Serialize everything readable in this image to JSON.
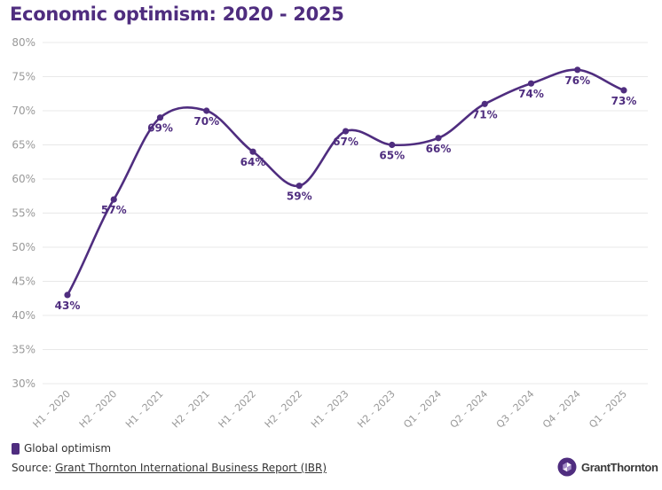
{
  "title": "Economic optimism: 2020 - 2025",
  "legend": {
    "label": "Global optimism"
  },
  "source": {
    "prefix": "Source: ",
    "link_text": "Grant Thornton International Business Report (IBR)"
  },
  "logo": {
    "text": "GrantThornton"
  },
  "colors": {
    "series": "#4f2d7f",
    "grid": "#e8e8e8",
    "tick": "#999999"
  },
  "chart_data": {
    "type": "line",
    "title": "Economic optimism: 2020 - 2025",
    "categories": [
      "H1 - 2020",
      "H2 - 2020",
      "H1 - 2021",
      "H2 - 2021",
      "H1 - 2022",
      "H2 - 2022",
      "H1 - 2023",
      "H2 - 2023",
      "Q1 - 2024",
      "Q2 - 2024",
      "Q3 - 2024",
      "Q4 - 2024",
      "Q1 - 2025"
    ],
    "series": [
      {
        "name": "Global optimism",
        "values": [
          43,
          57,
          69,
          70,
          64,
          59,
          67,
          65,
          66,
          71,
          74,
          76,
          73
        ],
        "labels": [
          "43%",
          "57%",
          "69%",
          "70%",
          "64%",
          "59%",
          "67%",
          "65%",
          "66%",
          "71%",
          "74%",
          "76%",
          "73%"
        ]
      }
    ],
    "ylim": [
      30,
      80
    ],
    "yticks": [
      "30%",
      "35%",
      "40%",
      "45%",
      "50%",
      "55%",
      "60%",
      "65%",
      "70%",
      "75%",
      "80%"
    ],
    "grid": true,
    "smooth": true,
    "legend_position": "bottom-left"
  }
}
